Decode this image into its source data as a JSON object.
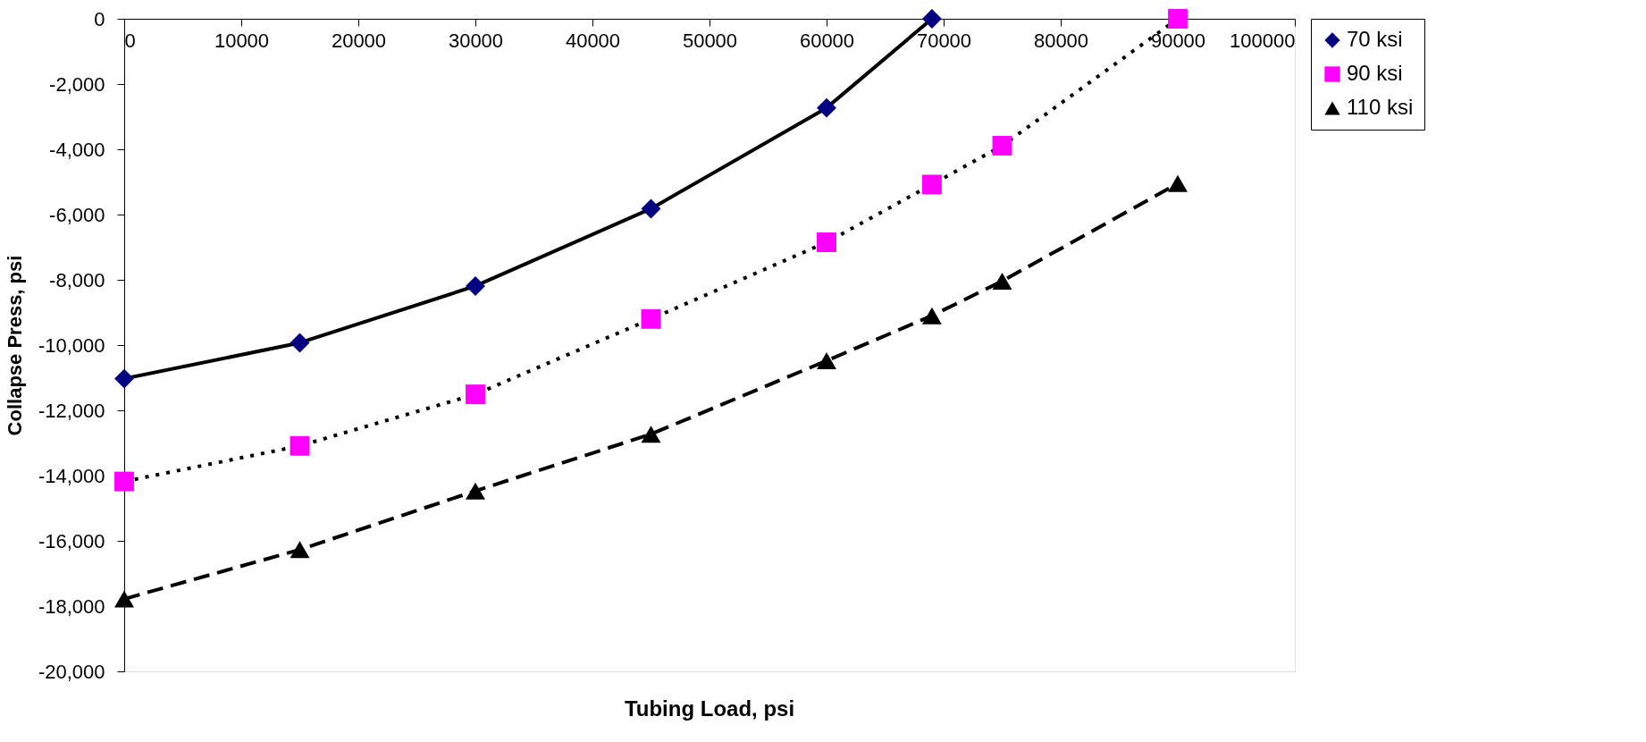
{
  "chart_data": {
    "type": "line",
    "xlabel": "Tubing Load, psi",
    "ylabel": "Collapse Press, psi",
    "xlim": [
      0,
      100000
    ],
    "xticks": [
      0,
      10000,
      20000,
      30000,
      40000,
      50000,
      60000,
      70000,
      80000,
      90000,
      100000
    ],
    "ylim": [
      -20000,
      0
    ],
    "yticks": [
      0,
      {
        "value": -2000,
        "label": "-2,000"
      },
      {
        "value": -4000,
        "label": "-4,000"
      },
      {
        "value": -6000,
        "label": "-6,000"
      },
      {
        "value": -8000,
        "label": "-8,000"
      },
      {
        "value": -10000,
        "label": "-10,000"
      },
      {
        "value": -12000,
        "label": "-12,000"
      },
      {
        "value": -14000,
        "label": "-14,000"
      },
      {
        "value": -16000,
        "label": "-16,000"
      },
      {
        "value": -18000,
        "label": "-18,000"
      },
      {
        "value": -20000,
        "label": "-20,000"
      }
    ],
    "grid": false,
    "legend": "right",
    "series": [
      {
        "name": "70 ksi",
        "color": "#000080",
        "marker": "diamond",
        "line_style": "solid",
        "x": [
          0,
          15000,
          30000,
          45000,
          60000,
          69000
        ],
        "values": [
          -11030,
          -9930,
          -8190,
          -5820,
          -2730,
          0
        ]
      },
      {
        "name": "90 ksi",
        "color": "#ff00ff",
        "marker": "square",
        "line_style": "dotted",
        "x": [
          0,
          15000,
          30000,
          45000,
          60000,
          69000,
          75000,
          90000
        ],
        "values": [
          -14180,
          -13090,
          -11510,
          -9200,
          -6850,
          -5080,
          -3890,
          0
        ]
      },
      {
        "name": "110 ksi",
        "color": "#000000",
        "marker": "triangle",
        "line_style": "dashed",
        "x": [
          0,
          15000,
          30000,
          45000,
          60000,
          69000,
          75000,
          90000
        ],
        "values": [
          -17780,
          -16270,
          -14470,
          -12730,
          -10480,
          -9100,
          -8040,
          -5050
        ]
      }
    ]
  }
}
